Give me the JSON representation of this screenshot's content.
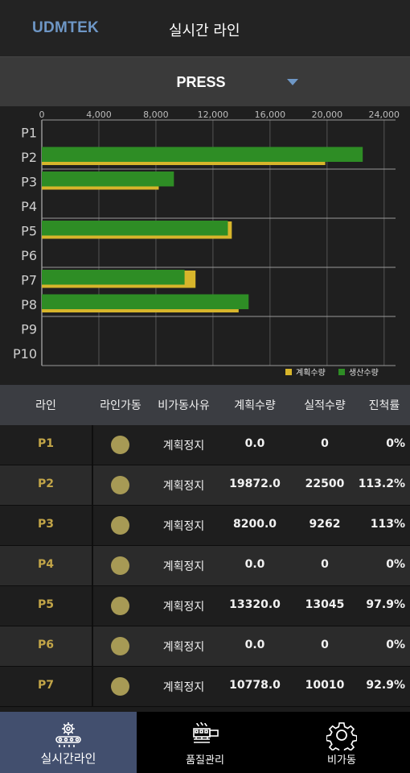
{
  "header": {
    "brand": "UDMTEK",
    "title": "실시간 라인"
  },
  "selector": {
    "value": "PRESS"
  },
  "chart_data": {
    "type": "bar",
    "orientation": "horizontal",
    "categories": [
      "P1",
      "P2",
      "P3",
      "P4",
      "P5",
      "P6",
      "P7",
      "P8",
      "P9",
      "P10"
    ],
    "xticks": [
      "0",
      "4,000",
      "8,000",
      "12,000",
      "16,000",
      "20,000",
      "24,000"
    ],
    "xlim": [
      0,
      24800
    ],
    "series": [
      {
        "name": "계획수량",
        "color": "#d7b52b",
        "values": [
          0,
          19872,
          8200,
          0,
          13320,
          0,
          10778,
          13800,
          0,
          0
        ]
      },
      {
        "name": "생산수량",
        "color": "#2e8d25",
        "values": [
          0,
          22500,
          9262,
          0,
          13045,
          0,
          10010,
          14500,
          0,
          0
        ]
      }
    ],
    "legend": "bottom-right",
    "grid": true
  },
  "table": {
    "headers": {
      "line": "라인",
      "running": "라인가동",
      "reason": "비가동사유",
      "plan": "계획수량",
      "actual": "실적수량",
      "rate": "진척률"
    },
    "rows": [
      {
        "line": "P1",
        "reason": "계획정지",
        "plan": "0.0",
        "actual": "0",
        "rate": "0%"
      },
      {
        "line": "P2",
        "reason": "계획정지",
        "plan": "19872.0",
        "actual": "22500",
        "rate": "113.2%"
      },
      {
        "line": "P3",
        "reason": "계획정지",
        "plan": "8200.0",
        "actual": "9262",
        "rate": "113%"
      },
      {
        "line": "P4",
        "reason": "계획정지",
        "plan": "0.0",
        "actual": "0",
        "rate": "0%"
      },
      {
        "line": "P5",
        "reason": "계획정지",
        "plan": "13320.0",
        "actual": "13045",
        "rate": "97.9%"
      },
      {
        "line": "P6",
        "reason": "계획정지",
        "plan": "0.0",
        "actual": "0",
        "rate": "0%"
      },
      {
        "line": "P7",
        "reason": "계획정지",
        "plan": "10778.0",
        "actual": "10010",
        "rate": "92.9%"
      }
    ]
  },
  "nav": {
    "items": [
      {
        "label": "실시간라인",
        "icon": "gear-conveyor-icon"
      },
      {
        "label": "품질관리",
        "icon": "quality-icon"
      },
      {
        "label": "비가동",
        "icon": "gear-icon"
      }
    ]
  }
}
